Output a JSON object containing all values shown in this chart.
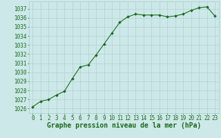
{
  "x": [
    0,
    1,
    2,
    3,
    4,
    5,
    6,
    7,
    8,
    9,
    10,
    11,
    12,
    13,
    14,
    15,
    16,
    17,
    18,
    19,
    20,
    21,
    22,
    23
  ],
  "y": [
    1026.2,
    1026.8,
    1027.0,
    1027.5,
    1027.9,
    1029.3,
    1030.6,
    1030.8,
    1031.9,
    1033.1,
    1034.3,
    1035.5,
    1036.1,
    1036.4,
    1036.3,
    1036.3,
    1036.3,
    1036.1,
    1036.2,
    1036.4,
    1036.8,
    1037.1,
    1037.2,
    1036.2
  ],
  "ylim": [
    1025.5,
    1037.8
  ],
  "xlim": [
    -0.5,
    23.5
  ],
  "yticks": [
    1026,
    1027,
    1028,
    1029,
    1030,
    1031,
    1032,
    1033,
    1034,
    1035,
    1036,
    1037
  ],
  "xticks": [
    0,
    1,
    2,
    3,
    4,
    5,
    6,
    7,
    8,
    9,
    10,
    11,
    12,
    13,
    14,
    15,
    16,
    17,
    18,
    19,
    20,
    21,
    22,
    23
  ],
  "line_color": "#1a6b1a",
  "marker_color": "#1a6b1a",
  "bg_color": "#cce8e8",
  "grid_color": "#aacccc",
  "xlabel": "Graphe pression niveau de la mer (hPa)",
  "xlabel_color": "#1a6b1a",
  "tick_color": "#1a6b1a",
  "label_fontsize": 5.5,
  "xlabel_fontsize": 7.0
}
